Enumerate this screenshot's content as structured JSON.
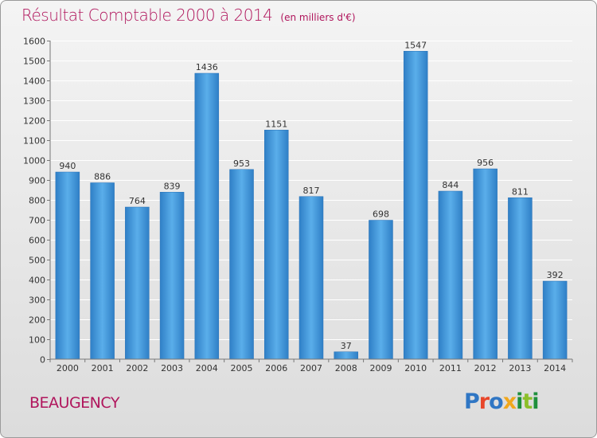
{
  "title": "Résultat Comptable 2000 à 2014",
  "unit_note": "(en milliers d'€)",
  "city": "BEAUGENCY",
  "logo": {
    "text": "Proxiti",
    "colors": [
      "#2f76c4",
      "#e8462a",
      "#f0a71d",
      "#1e8f3c",
      "#8cbf2a"
    ]
  },
  "chart_data": {
    "type": "bar",
    "title": "Résultat Comptable 2000 à 2014",
    "xlabel": "",
    "ylabel": "",
    "categories": [
      "2000",
      "2001",
      "2002",
      "2003",
      "2004",
      "2005",
      "2006",
      "2007",
      "2008",
      "2009",
      "2010",
      "2011",
      "2012",
      "2013",
      "2014"
    ],
    "values": [
      940,
      886,
      764,
      839,
      1436,
      953,
      1151,
      817,
      37,
      698,
      1547,
      844,
      956,
      811,
      392
    ],
    "ylim": [
      0,
      1600
    ],
    "yticks": [
      0,
      100,
      200,
      300,
      400,
      500,
      600,
      700,
      800,
      900,
      1000,
      1100,
      1200,
      1300,
      1400,
      1500,
      1600
    ],
    "grid": true,
    "bar_color": "#3a8fd6",
    "label_color": "#333333"
  }
}
